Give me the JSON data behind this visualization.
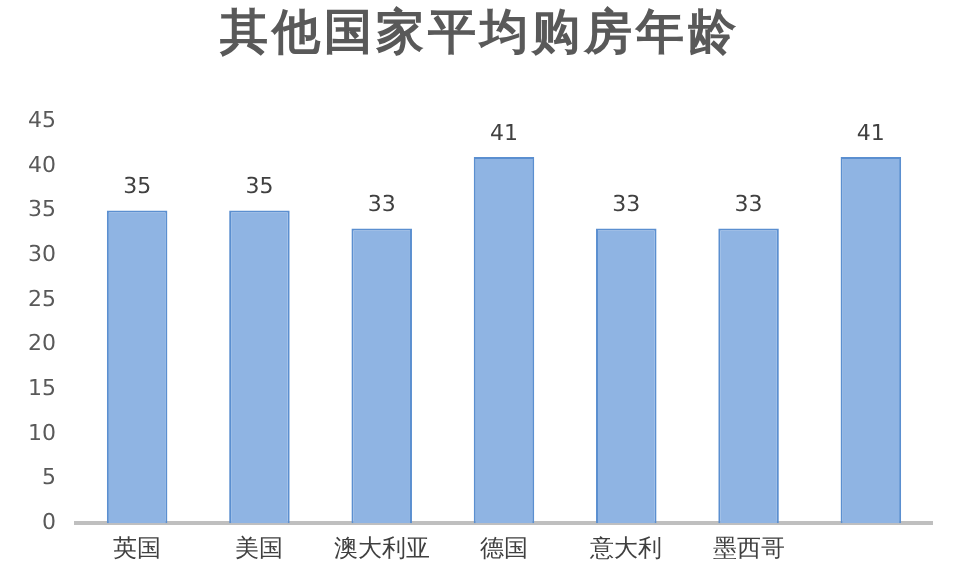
{
  "chart_data": {
    "type": "bar",
    "title": "其他国家平均购房年龄",
    "categories": [
      "英国",
      "美国",
      "澳大利亚",
      "德国",
      "意大利",
      "墨西哥",
      null
    ],
    "values": [
      35,
      35,
      33,
      41,
      33,
      33,
      41
    ],
    "color": "#8fb4e3",
    "ylim": [
      0,
      45
    ],
    "yticks": [
      0,
      5,
      10,
      15,
      20,
      25,
      30,
      35,
      40,
      45
    ],
    "grid": false,
    "data_labels": true
  }
}
